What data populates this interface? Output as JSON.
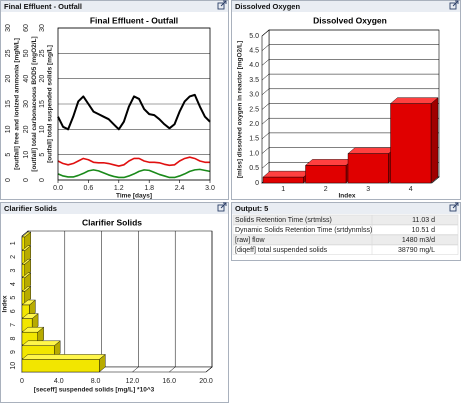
{
  "window_titles": [
    "Final Effluent - Outfall",
    "Dissolved Oxygen",
    "Clarifier Solids",
    "Output: 5"
  ],
  "chart_data": [
    {
      "type": "line",
      "title": "Final Effluent - Outfall",
      "x_label": "Time [days]",
      "x": [
        0,
        0.1,
        0.2,
        0.3,
        0.4,
        0.5,
        0.6,
        0.7,
        0.8,
        0.9,
        1.0,
        1.1,
        1.2,
        1.3,
        1.4,
        1.5,
        1.6,
        1.7,
        1.8,
        1.9,
        2.0,
        2.1,
        2.2,
        2.3,
        2.4,
        2.5,
        2.6,
        2.7,
        2.8,
        2.9,
        3.0
      ],
      "xlim": [
        0,
        3
      ],
      "xticks": [
        {
          "value": 0,
          "label": "0.0"
        },
        0.6,
        1.2,
        1.8,
        2.4,
        {
          "value": 3,
          "label": "3.0"
        }
      ],
      "grid": true,
      "y_axes": [
        {
          "label": "[outfall] free and ionized ammonia [mgN/L]",
          "color": "#1a8a1a",
          "ylim": [
            0,
            30
          ],
          "yticks": [
            0,
            5,
            10,
            15,
            20,
            25,
            30
          ]
        },
        {
          "label": "[outfall] total carbonaceous BOD5 [mgO2/L]",
          "color": "#e01010",
          "ylim": [
            0,
            60
          ],
          "yticks": [
            0,
            10,
            20,
            30,
            40,
            50,
            60
          ]
        },
        {
          "label": "[outfall] total suspended solids [mg/L]",
          "color": "#000000",
          "ylim": [
            0,
            30
          ],
          "yticks": [
            0,
            5,
            10,
            15,
            20,
            25,
            30
          ]
        }
      ],
      "series": [
        {
          "color": "#1a8a1a",
          "axis": 0,
          "values": [
            1.2,
            0.8,
            0.6,
            0.6,
            0.9,
            1.3,
            1.8,
            2,
            1.8,
            1.4,
            1,
            0.7,
            0.5,
            0.5,
            0.8,
            1.2,
            1.7,
            2,
            1.9,
            1.5,
            1.1,
            0.8,
            0.5,
            0.5,
            0.8,
            1.2,
            1.7,
            2,
            2.1,
            1.9,
            1.7
          ]
        },
        {
          "color": "#e01010",
          "axis": 1,
          "values": [
            7.5,
            6.5,
            6,
            6.5,
            7.5,
            8.5,
            8,
            7,
            6.8,
            6.8,
            6.5,
            6,
            5.5,
            6,
            7.5,
            8.5,
            8.5,
            7.5,
            7,
            7,
            6.8,
            6.2,
            5.8,
            6,
            7.5,
            8.5,
            9,
            8.5,
            7.5,
            7,
            7
          ]
        },
        {
          "color": "#000000",
          "axis": 2,
          "values": [
            12.5,
            10.5,
            10,
            12.5,
            15.5,
            16.5,
            15,
            13.5,
            13,
            12.5,
            12,
            11,
            10,
            11.5,
            14.5,
            16.5,
            16,
            14,
            13,
            12.8,
            12,
            11,
            10.2,
            11,
            13.5,
            15.5,
            16.5,
            16.8,
            14.5,
            12.5,
            11.5
          ]
        }
      ]
    },
    {
      "type": "bar3d",
      "title": "Dissolved Oxygen",
      "x_label": "Index",
      "y_label": "[mlss] dissolved oxygen in reactor [mgO2/L]",
      "categories": [
        "1",
        "2",
        "3",
        "4"
      ],
      "values": [
        0.2,
        0.6,
        1.0,
        2.7
      ],
      "color": "#e00000",
      "ylim": [
        0,
        5
      ],
      "yticks": [
        0,
        0.5,
        {
          "value": 1,
          "label": "1.0"
        },
        1.5,
        {
          "value": 2,
          "label": "2.0"
        },
        2.5,
        {
          "value": 3,
          "label": "3.0"
        },
        3.5,
        {
          "value": 4,
          "label": "4.0"
        },
        4.5,
        {
          "value": 5,
          "label": "5.0"
        }
      ],
      "grid": true
    },
    {
      "type": "hbar3d",
      "title": "Clarifier Solids",
      "x_label": "[seceff] suspended solids [mg/L] *10^3",
      "y_label": "Index",
      "categories": [
        "1",
        "2",
        "3",
        "4",
        "5",
        "6",
        "7",
        "8",
        "9",
        "10"
      ],
      "values": [
        0.3,
        0.3,
        0.3,
        0.3,
        0.3,
        0.8,
        1.1,
        1.7,
        3.5,
        8.4
      ],
      "color": "#f2e600",
      "xlim": [
        0,
        20
      ],
      "xticks": [
        0,
        {
          "value": 4,
          "label": "4.0"
        },
        {
          "value": 8,
          "label": "8.0"
        },
        {
          "value": 12,
          "label": "12.0"
        },
        {
          "value": 16,
          "label": "16.0"
        },
        {
          "value": 20,
          "label": "20.0"
        }
      ],
      "grid": true
    }
  ],
  "output_table": {
    "rows": [
      [
        "Solids Retention Time (srtmlss)",
        "11.03 d"
      ],
      [
        "Dynamic Solids Retention Time (srtdynmlss)",
        "10.51 d"
      ],
      [
        "[raw] flow",
        "1480 m3/d"
      ],
      [
        "[diqeff] total suspended solids",
        "38790 mg/L"
      ]
    ]
  }
}
